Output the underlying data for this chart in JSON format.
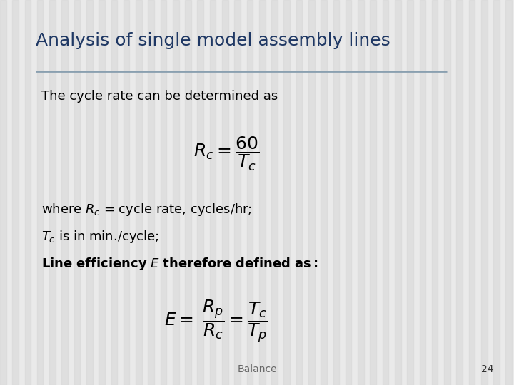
{
  "title": "Analysis of single model assembly lines",
  "title_color": "#1F3864",
  "title_fontsize": 18,
  "background_color": "#EAEAEA",
  "stripe_color": "#D8D8D8",
  "divider_color": "#8AA0B0",
  "text1": "The cycle rate can be determined as",
  "body_text_fontsize": 13,
  "formula1": "$R_c = \\dfrac{60}{T_c}$",
  "formula1_fontsize": 18,
  "text2": "where $R_c$ = cycle rate, cycles/hr;",
  "text3": "$T_c$ is in min./cycle;",
  "text4": "$\\mathbf{Line\\ efficiency\\ \\textit{E}\\ therefore\\ defined\\ as:}$",
  "formula2": "$E = \\;\\dfrac{R_p}{R_c} = \\dfrac{T_c}{T_p}$",
  "formula2_fontsize": 18,
  "footer_text": "Balance",
  "footer_page": "24",
  "footer_fontsize": 10
}
